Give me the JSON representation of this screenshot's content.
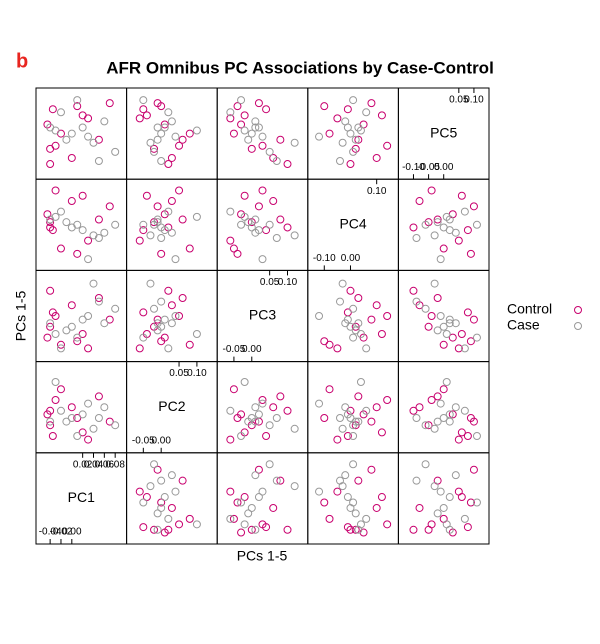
{
  "chart_data": {
    "type": "splom",
    "panel_label": "b",
    "title": "AFR Omnibus PC Associations by Case-Control",
    "xlabel": "PCs 1-5",
    "ylabel": "PCs 1-5",
    "legend": "right",
    "variables": [
      {
        "name": "PC1",
        "lim": [
          -0.055,
          0.09
        ],
        "ticks": [
          -0.04,
          -0.02,
          {
            "value": 0,
            "label": "0.00"
          },
          0.02,
          0.04,
          0.06,
          0.08
        ]
      },
      {
        "name": "PC2",
        "lim": [
          -0.08,
          0.14
        ],
        "ticks": [
          -0.05,
          {
            "value": 0,
            "label": "0.00"
          },
          0.05,
          {
            "value": 0.1,
            "label": "0.10"
          }
        ]
      },
      {
        "name": "PC3",
        "lim": [
          -0.08,
          0.14
        ],
        "ticks": [
          -0.05,
          {
            "value": 0,
            "label": "0.00"
          },
          0.05,
          {
            "value": 0.1,
            "label": "0.10"
          }
        ]
      },
      {
        "name": "PC4",
        "lim": [
          -0.14,
          0.16
        ],
        "ticks": [
          {
            "value": -0.1,
            "label": "-0.10"
          },
          {
            "value": 0,
            "label": "0.00"
          },
          {
            "value": 0.1,
            "label": "0.10"
          }
        ]
      },
      {
        "name": "PC5",
        "lim": [
          -0.13,
          0.13
        ],
        "ticks": [
          {
            "value": -0.1,
            "label": "-0.10"
          },
          -0.05,
          {
            "value": 0,
            "label": "0.00"
          },
          0.05,
          {
            "value": 0.1,
            "label": "0.10"
          }
        ]
      }
    ],
    "series": [
      {
        "name": "Control",
        "color": "#c8006e",
        "values": [
          [
            -0.04,
            -0.02,
            0.0,
            0.02,
            -0.05
          ],
          [
            -0.045,
            0.01,
            -0.03,
            0.05,
            0.03
          ],
          [
            -0.035,
            -0.05,
            0.04,
            -0.01,
            0.08
          ],
          [
            0.0,
            0.03,
            0.06,
            0.1,
            -0.08
          ],
          [
            0.02,
            -0.04,
            -0.02,
            0.12,
            0.06
          ],
          [
            0.05,
            0.06,
            0.08,
            0.03,
            -0.02
          ],
          [
            -0.02,
            0.08,
            -0.05,
            -0.08,
            0.0
          ],
          [
            0.07,
            -0.01,
            0.02,
            0.08,
            0.1
          ],
          [
            -0.04,
            0.02,
            0.1,
            0.0,
            -0.1
          ],
          [
            0.03,
            -0.06,
            -0.06,
            -0.05,
            0.05
          ],
          [
            -0.03,
            0.05,
            0.03,
            0.14,
            -0.04
          ],
          [
            0.01,
            0.0,
            -0.04,
            -0.1,
            0.09
          ]
        ]
      },
      {
        "name": "Case",
        "color": "#999999",
        "values": [
          [
            0.0,
            0.0,
            0.0,
            0.0,
            0.0
          ],
          [
            0.02,
            0.01,
            0.02,
            -0.01,
            0.02
          ],
          [
            -0.01,
            -0.01,
            -0.01,
            0.02,
            -0.02
          ],
          [
            0.06,
            0.03,
            0.01,
            -0.02,
            0.04
          ],
          [
            0.08,
            -0.02,
            0.05,
            0.01,
            -0.06
          ],
          [
            -0.03,
            0.1,
            -0.02,
            0.04,
            0.01
          ],
          [
            0.04,
            -0.03,
            0.12,
            -0.03,
            -0.03
          ],
          [
            -0.02,
            0.02,
            -0.06,
            0.06,
            0.07
          ],
          [
            0.03,
            0.04,
            0.03,
            -0.12,
            -0.01
          ],
          [
            0.01,
            -0.05,
            -0.03,
            0.01,
            0.11
          ],
          [
            0.05,
            0.0,
            0.07,
            -0.04,
            -0.09
          ],
          [
            -0.04,
            -0.01,
            0.01,
            0.03,
            0.02
          ]
        ]
      }
    ]
  }
}
